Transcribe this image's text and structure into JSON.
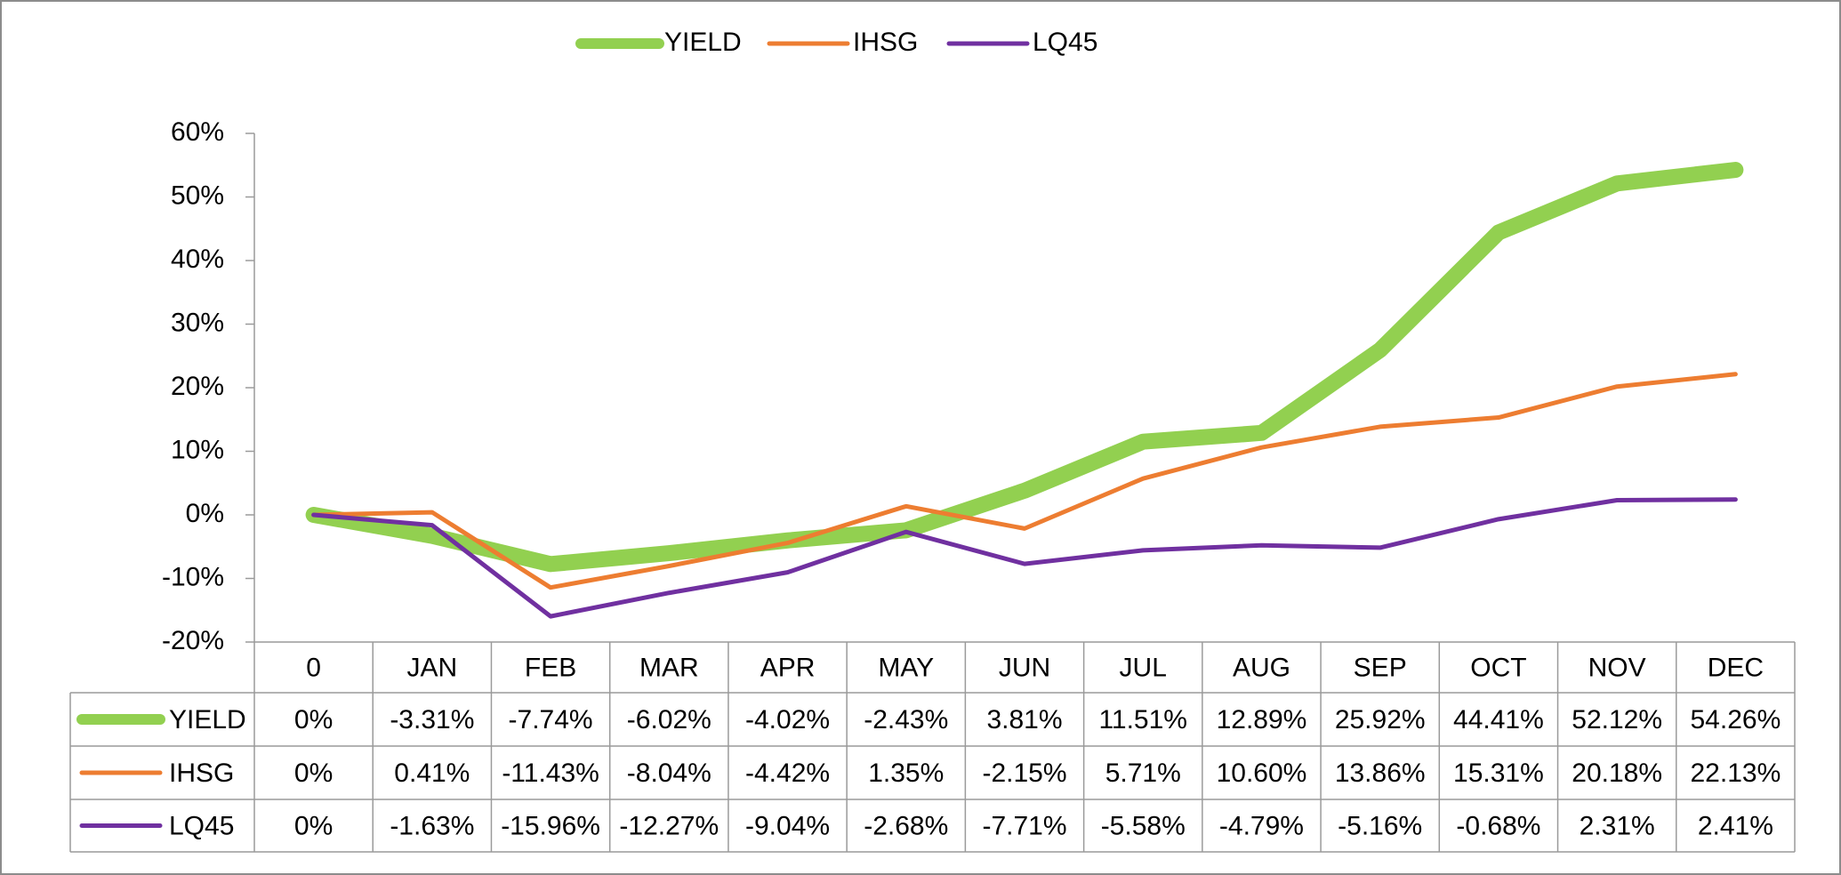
{
  "chart_data": {
    "type": "line",
    "categories": [
      "0",
      "JAN",
      "FEB",
      "MAR",
      "APR",
      "MAY",
      "JUN",
      "JUL",
      "AUG",
      "SEP",
      "OCT",
      "NOV",
      "DEC"
    ],
    "series": [
      {
        "name": "YIELD",
        "color": "#92d050",
        "width": 18,
        "values": [
          0,
          -3.31,
          -7.74,
          -6.02,
          -4.02,
          -2.43,
          3.81,
          11.51,
          12.89,
          25.92,
          44.41,
          52.12,
          54.26
        ],
        "value_labels": [
          "0%",
          "-3.31%",
          "-7.74%",
          "-6.02%",
          "-4.02%",
          "-2.43%",
          "3.81%",
          "11.51%",
          "12.89%",
          "25.92%",
          "44.41%",
          "52.12%",
          "54.26%"
        ]
      },
      {
        "name": "IHSG",
        "color": "#ed7d31",
        "width": 5,
        "values": [
          0,
          0.41,
          -11.43,
          -8.04,
          -4.42,
          1.35,
          -2.15,
          5.71,
          10.6,
          13.86,
          15.31,
          20.18,
          22.13
        ],
        "value_labels": [
          "0%",
          "0.41%",
          "-11.43%",
          "-8.04%",
          "-4.42%",
          "1.35%",
          "-2.15%",
          "5.71%",
          "10.60%",
          "13.86%",
          "15.31%",
          "20.18%",
          "22.13%"
        ]
      },
      {
        "name": "LQ45",
        "color": "#7030a0",
        "width": 5,
        "values": [
          0,
          -1.63,
          -15.96,
          -12.27,
          -9.04,
          -2.68,
          -7.71,
          -5.58,
          -4.79,
          -5.16,
          -0.68,
          2.31,
          2.41
        ],
        "value_labels": [
          "0%",
          "-1.63%",
          "-15.96%",
          "-12.27%",
          "-9.04%",
          "-2.68%",
          "-7.71%",
          "-5.58%",
          "-4.79%",
          "-5.16%",
          "-0.68%",
          "2.31%",
          "2.41%"
        ]
      }
    ],
    "ylim": [
      -20,
      60
    ],
    "yticks": [
      {
        "value": -20,
        "label": "-20%"
      },
      {
        "value": -10,
        "label": "-10%"
      },
      {
        "value": 0,
        "label": "0%"
      },
      {
        "value": 10,
        "label": "10%"
      },
      {
        "value": 20,
        "label": "20%"
      },
      {
        "value": 30,
        "label": "30%"
      },
      {
        "value": 40,
        "label": "40%"
      },
      {
        "value": 50,
        "label": "50%"
      },
      {
        "value": 60,
        "label": "60%"
      }
    ],
    "grid": false,
    "legend": "top",
    "data_table": true
  }
}
